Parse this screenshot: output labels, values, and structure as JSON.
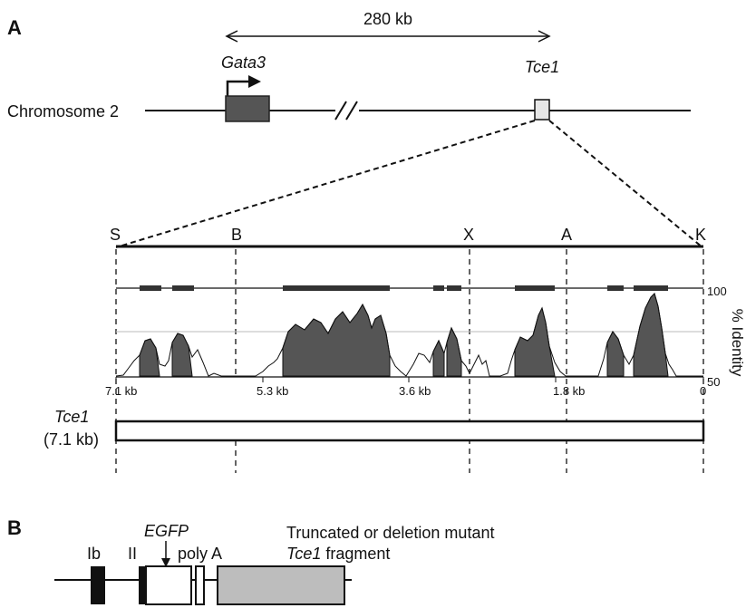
{
  "panel_a": {
    "label": "A",
    "distance": "280 kb",
    "chromosome": "Chromosome 2",
    "gene_gata3": "Gata3",
    "gene_tce1": "Tce1",
    "sites": [
      "S",
      "B",
      "X",
      "A",
      "K"
    ],
    "identity_axis": {
      "label": "% Identity",
      "top": "100",
      "bottom": "50"
    },
    "kb_ticks": [
      "7.1 kb",
      "5.3 kb",
      "3.6 kb",
      "1.8 kb",
      "0"
    ],
    "fragment_name": "Tce1",
    "fragment_size": "(7.1 kb)"
  },
  "panel_b": {
    "label": "B",
    "exon_ib": "Ib",
    "exon_ii": "II",
    "egfp": "EGFP",
    "polya": "poly A",
    "mutant_line1": "Truncated or deletion mutant",
    "mutant_line2_italic": "Tce1",
    "mutant_line2_rest": " fragment"
  },
  "colors": {
    "dark_fill": "#555555",
    "conserved_bar": "#333333",
    "tce1_box": "#e6e6e6",
    "truncated_box": "#bdbdbd"
  }
}
